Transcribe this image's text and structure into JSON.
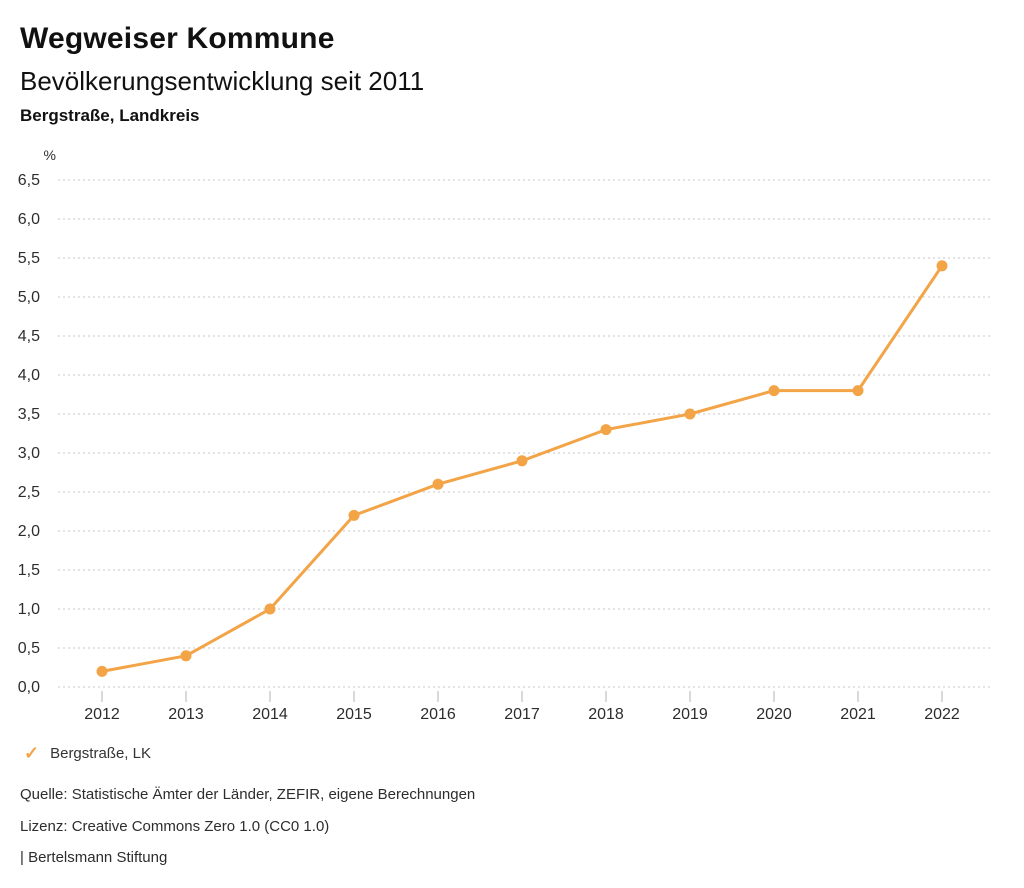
{
  "header": {
    "title": "Wegweiser Kommune",
    "subtitle": "Bevölkerungsentwicklung seit 2011",
    "region": "Bergstraße, Landkreis"
  },
  "chart_data": {
    "type": "line",
    "title": "Bevölkerungsentwicklung seit 2011",
    "region": "Bergstraße, Landkreis",
    "unit_label": "%",
    "categories": [
      "2012",
      "2013",
      "2014",
      "2015",
      "2016",
      "2017",
      "2018",
      "2019",
      "2020",
      "2021",
      "2022"
    ],
    "series": [
      {
        "name": "Bergstraße, LK",
        "values": [
          0.2,
          0.4,
          1.0,
          2.2,
          2.6,
          2.9,
          3.3,
          3.5,
          3.8,
          3.8,
          5.4
        ],
        "color": "#F2A446"
      }
    ],
    "ylim": [
      0,
      6.5
    ],
    "ytick_step": 0.5,
    "ytick_labels": [
      "0,0",
      "0,5",
      "1,0",
      "1,5",
      "2,0",
      "2,5",
      "3,0",
      "3,5",
      "4,0",
      "4,5",
      "5,0",
      "5,5",
      "6,0",
      "6,5"
    ],
    "decimal_separator": ",",
    "grid": "horizontal-dotted",
    "legend_position": "bottom-left"
  },
  "legend": {
    "items": [
      {
        "icon": "check",
        "icon_glyph": "✓",
        "label": "Bergstraße, LK",
        "color": "#F2A446"
      }
    ]
  },
  "footer": {
    "source": "Quelle: Statistische Ämter der Länder, ZEFIR, eigene Berechnungen",
    "license": "Lizenz: Creative Commons Zero 1.0 (CC0 1.0)",
    "attribution": "| Bertelsmann Stiftung"
  },
  "colors": {
    "accent_orange": "#F2A446",
    "gridline": "#C7C7C7",
    "tick": "#B3B3B3",
    "axis_text": "#2D2D2D",
    "text_primary": "#111111"
  }
}
